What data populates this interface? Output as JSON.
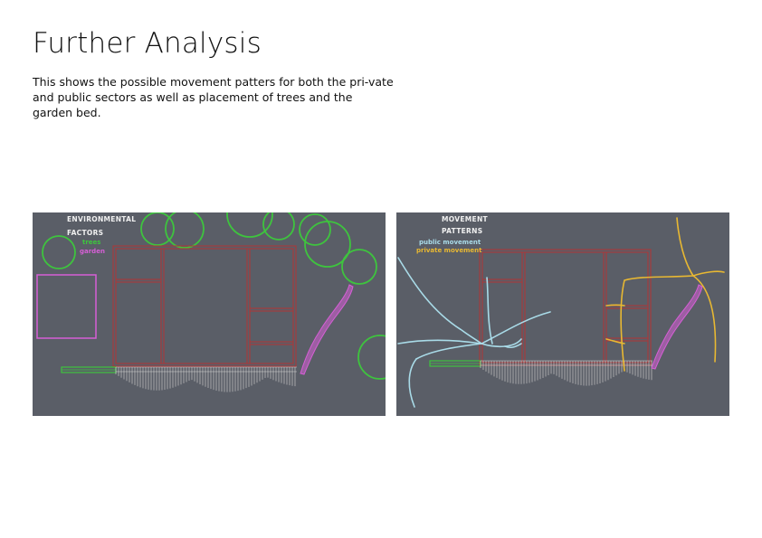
{
  "header": {
    "title": "Further Analysis",
    "description": "This shows the possible movement patters for both the pri-vate and public sectors as well as placement of trees and the garden bed."
  },
  "left_panel": {
    "heading_line1": "ENVIRONMENTAL",
    "heading_line2": "FACTORS",
    "legend": [
      {
        "label": "trees",
        "color": "#3ec43e"
      },
      {
        "label": "garden",
        "color": "#d65fd6"
      }
    ]
  },
  "right_panel": {
    "heading_line1": "MOVEMENT",
    "heading_line2": "PATTERNS",
    "legend": [
      {
        "label": "public movement",
        "color": "#a9dbe8"
      },
      {
        "label": "private movement",
        "color": "#e8b832"
      }
    ]
  },
  "colors": {
    "panel_bg": "#5a5e67",
    "structure": "#b33434",
    "deck": "#d8d8d8",
    "path_green": "#3ec43e",
    "trees": "#3ec43e",
    "garden": "#d65fd6",
    "public": "#a9dbe8",
    "private": "#e8b832"
  }
}
